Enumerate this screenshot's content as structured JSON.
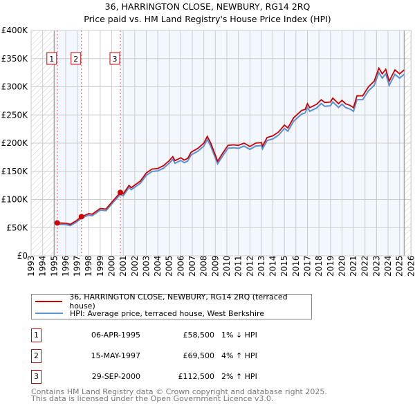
{
  "chart_data": {
    "type": "line",
    "title": "36, HARRINGTON CLOSE, NEWBURY, RG14 2RQ",
    "subtitle": "Price paid vs. HM Land Registry's House Price Index (HPI)",
    "xlim": [
      1993,
      2026
    ],
    "ylim": [
      0,
      400000
    ],
    "x_ticks": [
      "1993",
      "1994",
      "1995",
      "1996",
      "1997",
      "1998",
      "1999",
      "2000",
      "2001",
      "2002",
      "2003",
      "2004",
      "2005",
      "2006",
      "2007",
      "2008",
      "2009",
      "2010",
      "2011",
      "2012",
      "2013",
      "2014",
      "2015",
      "2016",
      "2017",
      "2018",
      "2019",
      "2020",
      "2021",
      "2022",
      "2023",
      "2024",
      "2025",
      "2026"
    ],
    "y_ticks": [
      "£0",
      "£50K",
      "£100K",
      "£150K",
      "£200K",
      "£250K",
      "£300K",
      "£350K",
      "£400K"
    ],
    "grid": true,
    "series": [
      {
        "name": "36, HARRINGTON CLOSE, NEWBURY, RG14 2RQ (terraced house)",
        "color": "#cc0000",
        "x": [
          1995.27,
          1996,
          1996.4,
          1996.9,
          1997.37,
          1998,
          1998.3,
          1999,
          1999.5,
          2000,
          2000.75,
          2001,
          2001.5,
          2001.7,
          2002.5,
          2003,
          2003.5,
          2004,
          2004.5,
          2005,
          2005.3,
          2005.5,
          2006,
          2006.3,
          2006.6,
          2006.9,
          2007.5,
          2008,
          2008.3,
          2008.6,
          2009.2,
          2009.6,
          2010.1,
          2010.6,
          2011,
          2011.5,
          2012,
          2012.5,
          2013,
          2013.1,
          2013.5,
          2014,
          2014.5,
          2015,
          2015.3,
          2015.8,
          2016.5,
          2016.8,
          2017,
          2017.2,
          2017.8,
          2018.2,
          2018.5,
          2019,
          2019.2,
          2019.7,
          2020,
          2020.3,
          2020.7,
          2021,
          2021.3,
          2021.8,
          2022.3,
          2022.8,
          2023.2,
          2023.5,
          2023.8,
          2024.1,
          2024.6,
          2025,
          2025.4
        ],
        "y": [
          58500,
          58000,
          56000,
          62000,
          69500,
          75000,
          74000,
          84000,
          83000,
          95000,
          112500,
          110000,
          125000,
          121000,
          133000,
          147000,
          154000,
          155000,
          160000,
          169000,
          176000,
          169000,
          174000,
          170000,
          173000,
          184000,
          191000,
          200000,
          212000,
          200000,
          168000,
          181000,
          196000,
          197000,
          196000,
          200000,
          194000,
          200000,
          201000,
          195000,
          210000,
          213000,
          220000,
          232000,
          227000,
          245000,
          258000,
          260000,
          270000,
          263000,
          269000,
          277000,
          272000,
          273000,
          280000,
          270000,
          276000,
          270000,
          267000,
          263000,
          284000,
          284000,
          300000,
          310000,
          333000,
          323000,
          331000,
          310000,
          330000,
          323000,
          330000
        ]
      },
      {
        "name": "HPI: Average price, terraced house, West Berkshire",
        "color": "#5b8fd6",
        "ratio_to_price_paid": 0.98
      }
    ],
    "sales": [
      {
        "n": "1",
        "x": 1995.27,
        "y": 58500
      },
      {
        "n": "2",
        "x": 1997.37,
        "y": 69500
      },
      {
        "n": "3",
        "x": 2000.75,
        "y": 112500
      }
    ]
  },
  "legend": {
    "item1": "36, HARRINGTON CLOSE, NEWBURY, RG14 2RQ (terraced house)",
    "item2": "HPI: Average price, terraced house, West Berkshire"
  },
  "transactions": [
    {
      "n": "1",
      "date": "06-APR-1995",
      "price": "£58,500",
      "hpi": "1% ↓ HPI"
    },
    {
      "n": "2",
      "date": "15-MAY-1997",
      "price": "£69,500",
      "hpi": "4% ↑ HPI"
    },
    {
      "n": "3",
      "date": "29-SEP-2000",
      "price": "£112,500",
      "hpi": "2% ↑ HPI"
    }
  ],
  "footer": {
    "line1": "Contains HM Land Registry data © Crown copyright and database right 2025.",
    "line2": "This data is licensed under the Open Government Licence v3.0."
  }
}
